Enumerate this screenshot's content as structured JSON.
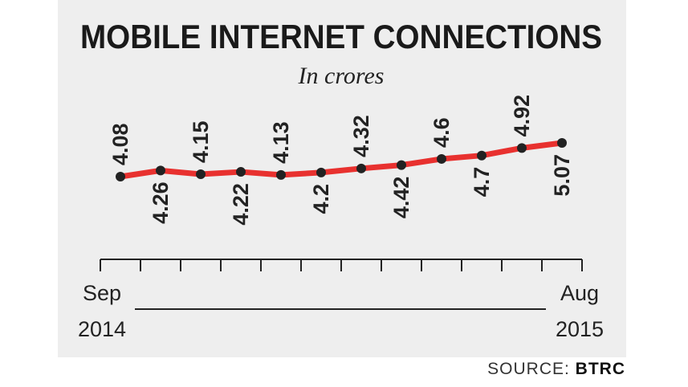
{
  "chart_data": {
    "type": "line",
    "title": "MOBILE INTERNET CONNECTIONS",
    "subtitle": "In crores",
    "categories": [
      "Sep 2014",
      null,
      null,
      null,
      null,
      null,
      null,
      null,
      null,
      null,
      null,
      "Aug 2015"
    ],
    "values": [
      4.08,
      4.26,
      4.15,
      4.22,
      4.13,
      4.2,
      4.32,
      4.42,
      4.6,
      4.7,
      4.92,
      5.07
    ],
    "color": "#e8312f",
    "marker_color": "#222222",
    "source_label": "SOURCE:",
    "source": "BTRC"
  }
}
